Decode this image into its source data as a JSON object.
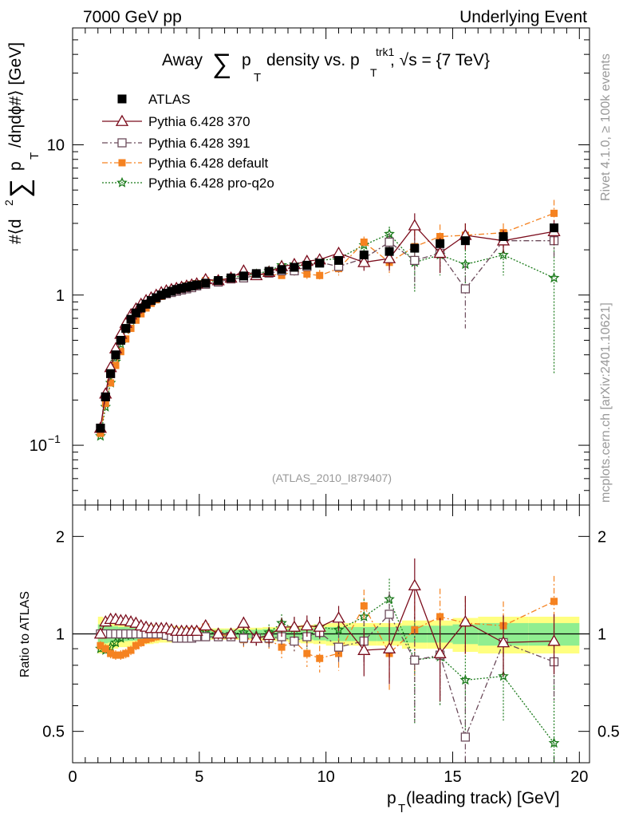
{
  "header": {
    "left": "7000 GeV pp",
    "right": "Underlying Event"
  },
  "side_text": {
    "right_top": "Rivet 4.1.0, ≥ 100k events",
    "right_bottom": "mcplots.cern.ch [arXiv:2401.10621]"
  },
  "chart_data": [
    {
      "type": "scatter",
      "panel": "main",
      "title_parts": {
        "prefix": "Away",
        "sum": "∑",
        "p": "p",
        "sub_T": "T",
        "density": "density vs. p",
        "sup_trk1": "trk1",
        "sub_T2": "T",
        "sqrts": ", √s = {7 TeV}"
      },
      "ylabel": "#⟨d² ∑ p_T /dηdϕ#⟩ [GeV]",
      "ylabel_parts": {
        "a": "#⟨d",
        "sq": "2",
        "sum": "∑",
        "p": "p",
        "T": "T",
        "b": "/dηdϕ#⟩ [GeV]"
      },
      "xlim": [
        0,
        20.4
      ],
      "ylim": [
        0.04,
        60
      ],
      "yscale": "log",
      "y_ticks": [
        {
          "value": 0.1,
          "base": "10",
          "exp": "−1"
        },
        {
          "value": 1,
          "label": "1"
        },
        {
          "value": 10,
          "label": "10"
        }
      ],
      "analysis_tag": "(ATLAS_2010_I879407)",
      "legend": [
        "ATLAS",
        "Pythia 6.428 370",
        "Pythia 6.428 391",
        "Pythia 6.428 default",
        "Pythia 6.428 pro-q2o"
      ],
      "x": [
        1.1,
        1.3,
        1.5,
        1.7,
        1.9,
        2.1,
        2.3,
        2.5,
        2.7,
        2.9,
        3.1,
        3.3,
        3.5,
        3.7,
        3.9,
        4.1,
        4.3,
        4.5,
        4.7,
        4.9,
        5.25,
        5.75,
        6.25,
        6.75,
        7.25,
        7.75,
        8.25,
        8.75,
        9.25,
        9.75,
        10.5,
        11.5,
        12.5,
        13.5,
        14.5,
        15.5,
        17.0,
        19.0
      ],
      "series": [
        {
          "name": "ATLAS",
          "color": "#000000",
          "marker": "square",
          "values": [
            0.13,
            0.21,
            0.3,
            0.4,
            0.5,
            0.6,
            0.69,
            0.76,
            0.82,
            0.87,
            0.92,
            0.96,
            1.0,
            1.03,
            1.06,
            1.09,
            1.11,
            1.13,
            1.15,
            1.17,
            1.2,
            1.25,
            1.3,
            1.34,
            1.39,
            1.44,
            1.48,
            1.53,
            1.58,
            1.63,
            1.7,
            1.85,
            1.95,
            2.05,
            2.2,
            2.3,
            2.45,
            2.8
          ],
          "errors": [
            0.005,
            0.006,
            0.008,
            0.01,
            0.012,
            0.014,
            0.015,
            0.016,
            0.017,
            0.018,
            0.019,
            0.02,
            0.02,
            0.02,
            0.021,
            0.022,
            0.022,
            0.023,
            0.023,
            0.024,
            0.025,
            0.027,
            0.03,
            0.033,
            0.036,
            0.04,
            0.045,
            0.05,
            0.055,
            0.06,
            0.06,
            0.07,
            0.08,
            0.09,
            0.1,
            0.12,
            0.12,
            0.18
          ]
        },
        {
          "name": "Pythia 6.428 370",
          "color": "#7b0c1c",
          "marker": "triangle",
          "line": "solid",
          "values": [
            0.13,
            0.22,
            0.33,
            0.44,
            0.55,
            0.65,
            0.74,
            0.81,
            0.87,
            0.92,
            0.96,
            1.0,
            1.04,
            1.07,
            1.09,
            1.11,
            1.13,
            1.15,
            1.17,
            1.19,
            1.27,
            1.25,
            1.3,
            1.45,
            1.35,
            1.42,
            1.55,
            1.6,
            1.68,
            1.72,
            1.9,
            1.65,
            1.75,
            2.9,
            1.9,
            2.5,
            2.3,
            2.65
          ],
          "errors": [
            0.004,
            0.006,
            0.008,
            0.01,
            0.012,
            0.013,
            0.014,
            0.015,
            0.016,
            0.017,
            0.018,
            0.019,
            0.02,
            0.02,
            0.021,
            0.022,
            0.023,
            0.024,
            0.025,
            0.026,
            0.03,
            0.04,
            0.04,
            0.05,
            0.06,
            0.07,
            0.08,
            0.1,
            0.1,
            0.12,
            0.15,
            0.2,
            0.3,
            0.6,
            0.5,
            0.5,
            0.4,
            0.5
          ]
        },
        {
          "name": "Pythia 6.428 391",
          "color": "#6b4a5a",
          "marker": "open-square",
          "line": "dashdot",
          "values": [
            0.13,
            0.21,
            0.3,
            0.4,
            0.5,
            0.6,
            0.69,
            0.76,
            0.82,
            0.87,
            0.92,
            0.96,
            1.0,
            1.02,
            1.04,
            1.06,
            1.08,
            1.1,
            1.12,
            1.15,
            1.18,
            1.22,
            1.28,
            1.3,
            1.35,
            1.4,
            1.45,
            1.45,
            1.55,
            1.65,
            1.55,
            1.75,
            2.25,
            1.7,
            1.9,
            1.1,
            2.3,
            2.3
          ],
          "errors": [
            0.004,
            0.006,
            0.008,
            0.01,
            0.012,
            0.013,
            0.014,
            0.015,
            0.016,
            0.017,
            0.018,
            0.019,
            0.02,
            0.02,
            0.021,
            0.022,
            0.023,
            0.024,
            0.025,
            0.026,
            0.03,
            0.04,
            0.04,
            0.05,
            0.06,
            0.07,
            0.08,
            0.1,
            0.1,
            0.12,
            0.15,
            0.2,
            0.3,
            0.6,
            0.5,
            0.5,
            0.4,
            0.5
          ]
        },
        {
          "name": "Pythia 6.428 default",
          "color": "#f58220",
          "marker": "filled-square",
          "line": "dashdot",
          "values": [
            0.12,
            0.19,
            0.26,
            0.34,
            0.42,
            0.51,
            0.6,
            0.68,
            0.75,
            0.82,
            0.88,
            0.93,
            0.98,
            1.02,
            1.06,
            1.09,
            1.12,
            1.15,
            1.17,
            1.19,
            1.25,
            1.25,
            1.28,
            1.3,
            1.35,
            1.38,
            1.35,
            1.45,
            1.38,
            1.35,
            1.5,
            2.25,
            1.65,
            2.1,
            2.45,
            2.5,
            2.6,
            3.5
          ],
          "errors": [
            0.004,
            0.006,
            0.008,
            0.01,
            0.012,
            0.013,
            0.014,
            0.015,
            0.016,
            0.017,
            0.018,
            0.019,
            0.02,
            0.02,
            0.021,
            0.022,
            0.023,
            0.024,
            0.025,
            0.026,
            0.03,
            0.04,
            0.04,
            0.05,
            0.06,
            0.07,
            0.08,
            0.1,
            0.1,
            0.12,
            0.15,
            0.2,
            0.3,
            0.6,
            0.5,
            0.5,
            0.4,
            0.8
          ]
        },
        {
          "name": "Pythia 6.428 pro-q2o",
          "color": "#1a7a1a",
          "marker": "star",
          "line": "dotted",
          "values": [
            0.115,
            0.18,
            0.26,
            0.36,
            0.47,
            0.59,
            0.68,
            0.76,
            0.84,
            0.88,
            0.93,
            0.97,
            1.02,
            1.05,
            1.08,
            1.1,
            1.12,
            1.14,
            1.16,
            1.18,
            1.22,
            1.25,
            1.3,
            1.35,
            1.38,
            1.45,
            1.58,
            1.6,
            1.55,
            1.7,
            1.75,
            2.15,
            2.55,
            1.65,
            1.85,
            1.6,
            1.85,
            1.3
          ],
          "errors": [
            0.004,
            0.006,
            0.008,
            0.01,
            0.012,
            0.013,
            0.014,
            0.015,
            0.016,
            0.017,
            0.018,
            0.019,
            0.02,
            0.02,
            0.021,
            0.022,
            0.023,
            0.024,
            0.025,
            0.026,
            0.03,
            0.04,
            0.04,
            0.05,
            0.06,
            0.07,
            0.08,
            0.1,
            0.1,
            0.12,
            0.15,
            0.2,
            0.3,
            0.6,
            0.5,
            0.5,
            0.5,
            1.0
          ]
        }
      ]
    },
    {
      "type": "scatter",
      "panel": "ratio",
      "ylabel": "Ratio to ATLAS",
      "xlabel": "p_T (leading track) [GeV]",
      "xlabel_parts": {
        "p": "p",
        "T": "T",
        "rest": " (leading track) [GeV]"
      },
      "xlim": [
        0,
        20.4
      ],
      "ylim": [
        0.4,
        2.5
      ],
      "yscale": "log",
      "y_ticks": [
        0.5,
        1,
        2
      ],
      "x_ticks": [
        0,
        5,
        10,
        15,
        20
      ],
      "band_edges": [
        1.0,
        1.2,
        1.4,
        1.6,
        1.8,
        2.0,
        2.2,
        2.4,
        2.6,
        2.8,
        3.0,
        3.2,
        3.4,
        3.6,
        3.8,
        4.0,
        4.2,
        4.4,
        4.6,
        4.8,
        5.0,
        5.5,
        6.0,
        6.5,
        7.0,
        7.5,
        8.0,
        8.5,
        9.0,
        9.5,
        10.0,
        11.0,
        12.0,
        13.0,
        14.0,
        15.0,
        16.0,
        18.0,
        20.0
      ],
      "band_stat": [
        0.07,
        0.065,
        0.06,
        0.055,
        0.05,
        0.05,
        0.048,
        0.046,
        0.044,
        0.042,
        0.04,
        0.04,
        0.04,
        0.04,
        0.04,
        0.038,
        0.036,
        0.034,
        0.032,
        0.03,
        0.03,
        0.03,
        0.03,
        0.03,
        0.03,
        0.035,
        0.035,
        0.04,
        0.04,
        0.045,
        0.05,
        0.05,
        0.05,
        0.06,
        0.06,
        0.07,
        0.08,
        0.08
      ],
      "band_total": [
        0.13,
        0.12,
        0.11,
        0.1,
        0.09,
        0.09,
        0.085,
        0.08,
        0.075,
        0.07,
        0.07,
        0.065,
        0.06,
        0.06,
        0.06,
        0.055,
        0.05,
        0.05,
        0.045,
        0.04,
        0.04,
        0.04,
        0.04,
        0.04,
        0.045,
        0.05,
        0.05,
        0.06,
        0.065,
        0.07,
        0.08,
        0.08,
        0.08,
        0.1,
        0.1,
        0.12,
        0.13,
        0.13
      ],
      "x": [
        1.1,
        1.3,
        1.5,
        1.7,
        1.9,
        2.1,
        2.3,
        2.5,
        2.7,
        2.9,
        3.1,
        3.3,
        3.5,
        3.7,
        3.9,
        4.1,
        4.3,
        4.5,
        4.7,
        4.9,
        5.25,
        5.75,
        6.25,
        6.75,
        7.25,
        7.75,
        8.25,
        8.75,
        9.25,
        9.75,
        10.5,
        11.5,
        12.5,
        13.5,
        14.5,
        15.5,
        17.0,
        19.0
      ],
      "series": [
        {
          "name": "Pythia 6.428 370",
          "color": "#7b0c1c",
          "marker": "triangle",
          "line": "solid",
          "values": [
            1.0,
            1.09,
            1.11,
            1.11,
            1.1,
            1.1,
            1.09,
            1.08,
            1.06,
            1.05,
            1.04,
            1.04,
            1.04,
            1.04,
            1.03,
            1.02,
            1.02,
            1.02,
            1.02,
            1.02,
            1.06,
            1.0,
            1.0,
            1.08,
            0.97,
            0.99,
            1.05,
            1.05,
            1.06,
            1.05,
            1.12,
            0.89,
            0.9,
            1.41,
            0.87,
            1.09,
            0.94,
            0.95
          ],
          "errors": [
            0.03,
            0.03,
            0.03,
            0.03,
            0.03,
            0.03,
            0.03,
            0.03,
            0.03,
            0.03,
            0.03,
            0.03,
            0.03,
            0.03,
            0.03,
            0.03,
            0.03,
            0.03,
            0.03,
            0.03,
            0.04,
            0.04,
            0.04,
            0.05,
            0.05,
            0.06,
            0.07,
            0.08,
            0.08,
            0.08,
            0.1,
            0.15,
            0.2,
            0.3,
            0.25,
            0.22,
            0.2,
            0.2
          ]
        },
        {
          "name": "Pythia 6.428 391",
          "color": "#6b4a5a",
          "marker": "open-square",
          "line": "dashdot",
          "values": [
            1.0,
            1.0,
            1.0,
            1.0,
            1.0,
            1.0,
            1.0,
            1.0,
            1.0,
            1.0,
            1.0,
            1.0,
            1.0,
            0.99,
            0.98,
            0.97,
            0.97,
            0.97,
            0.97,
            0.98,
            0.98,
            0.98,
            0.98,
            0.97,
            0.97,
            0.97,
            0.98,
            0.95,
            0.98,
            1.01,
            0.91,
            0.95,
            1.15,
            0.83,
            0.86,
            0.48,
            0.94,
            0.82
          ],
          "errors": [
            0.03,
            0.03,
            0.03,
            0.03,
            0.03,
            0.03,
            0.03,
            0.03,
            0.03,
            0.03,
            0.03,
            0.03,
            0.03,
            0.03,
            0.03,
            0.03,
            0.03,
            0.03,
            0.03,
            0.03,
            0.04,
            0.04,
            0.04,
            0.05,
            0.05,
            0.06,
            0.07,
            0.08,
            0.08,
            0.08,
            0.1,
            0.15,
            0.2,
            0.3,
            0.25,
            0.22,
            0.2,
            0.2
          ]
        },
        {
          "name": "Pythia 6.428 default",
          "color": "#f58220",
          "marker": "filled-square",
          "line": "dashdot",
          "values": [
            0.92,
            0.9,
            0.87,
            0.86,
            0.86,
            0.87,
            0.89,
            0.92,
            0.94,
            0.96,
            0.97,
            0.98,
            0.99,
            1.0,
            1.0,
            1.01,
            1.01,
            1.01,
            1.02,
            1.02,
            1.05,
            1.0,
            0.98,
            0.96,
            0.97,
            0.96,
            0.91,
            0.95,
            0.87,
            0.84,
            0.87,
            1.22,
            0.87,
            1.03,
            1.13,
            1.08,
            1.06,
            1.26
          ],
          "errors": [
            0.03,
            0.03,
            0.03,
            0.03,
            0.03,
            0.03,
            0.03,
            0.03,
            0.03,
            0.03,
            0.03,
            0.03,
            0.03,
            0.03,
            0.03,
            0.03,
            0.03,
            0.03,
            0.03,
            0.03,
            0.04,
            0.04,
            0.04,
            0.05,
            0.05,
            0.06,
            0.07,
            0.08,
            0.08,
            0.08,
            0.1,
            0.15,
            0.2,
            0.3,
            0.25,
            0.22,
            0.2,
            0.25
          ]
        },
        {
          "name": "Pythia 6.428 pro-q2o",
          "color": "#1a7a1a",
          "marker": "star",
          "line": "dotted",
          "values": [
            0.9,
            0.89,
            0.91,
            0.94,
            0.97,
            0.99,
            0.99,
            1.0,
            1.02,
            1.01,
            1.01,
            1.01,
            1.02,
            1.02,
            1.02,
            1.01,
            1.01,
            1.01,
            1.01,
            1.01,
            1.02,
            1.0,
            1.0,
            1.01,
            0.99,
            1.01,
            1.08,
            1.04,
            0.98,
            1.05,
            1.03,
            1.13,
            1.28,
            0.83,
            0.85,
            0.72,
            0.74,
            0.46
          ],
          "errors": [
            0.03,
            0.03,
            0.03,
            0.03,
            0.03,
            0.03,
            0.03,
            0.03,
            0.03,
            0.03,
            0.03,
            0.03,
            0.03,
            0.03,
            0.03,
            0.03,
            0.03,
            0.03,
            0.03,
            0.03,
            0.04,
            0.04,
            0.04,
            0.05,
            0.05,
            0.06,
            0.07,
            0.08,
            0.08,
            0.08,
            0.1,
            0.15,
            0.2,
            0.3,
            0.25,
            0.22,
            0.2,
            0.3
          ]
        }
      ]
    }
  ]
}
